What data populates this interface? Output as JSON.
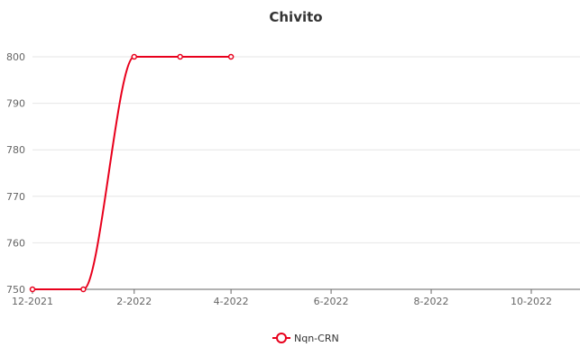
{
  "chart_data": {
    "type": "line",
    "title": "Chivito",
    "xlabel": "",
    "ylabel": "",
    "x_ticks": [
      "12-2021",
      "2-2022",
      "4-2022",
      "6-2022",
      "8-2022",
      "10-2022"
    ],
    "y_ticks": [
      750,
      760,
      770,
      780,
      790,
      800
    ],
    "ylim": [
      750,
      800
    ],
    "xlim": [
      "2021-12-01",
      "2022-12-01"
    ],
    "grid": "horizontal",
    "legend_position": "bottom",
    "smooth": true,
    "series": [
      {
        "name": "Nqn-CRN",
        "color": "#e8001c",
        "points": [
          {
            "x": "2021-12-01",
            "y": 750
          },
          {
            "x": "2022-01-01",
            "y": 750
          },
          {
            "x": "2022-02-01",
            "y": 800
          },
          {
            "x": "2022-03-01",
            "y": 800
          },
          {
            "x": "2022-04-01",
            "y": 800
          }
        ]
      }
    ]
  }
}
